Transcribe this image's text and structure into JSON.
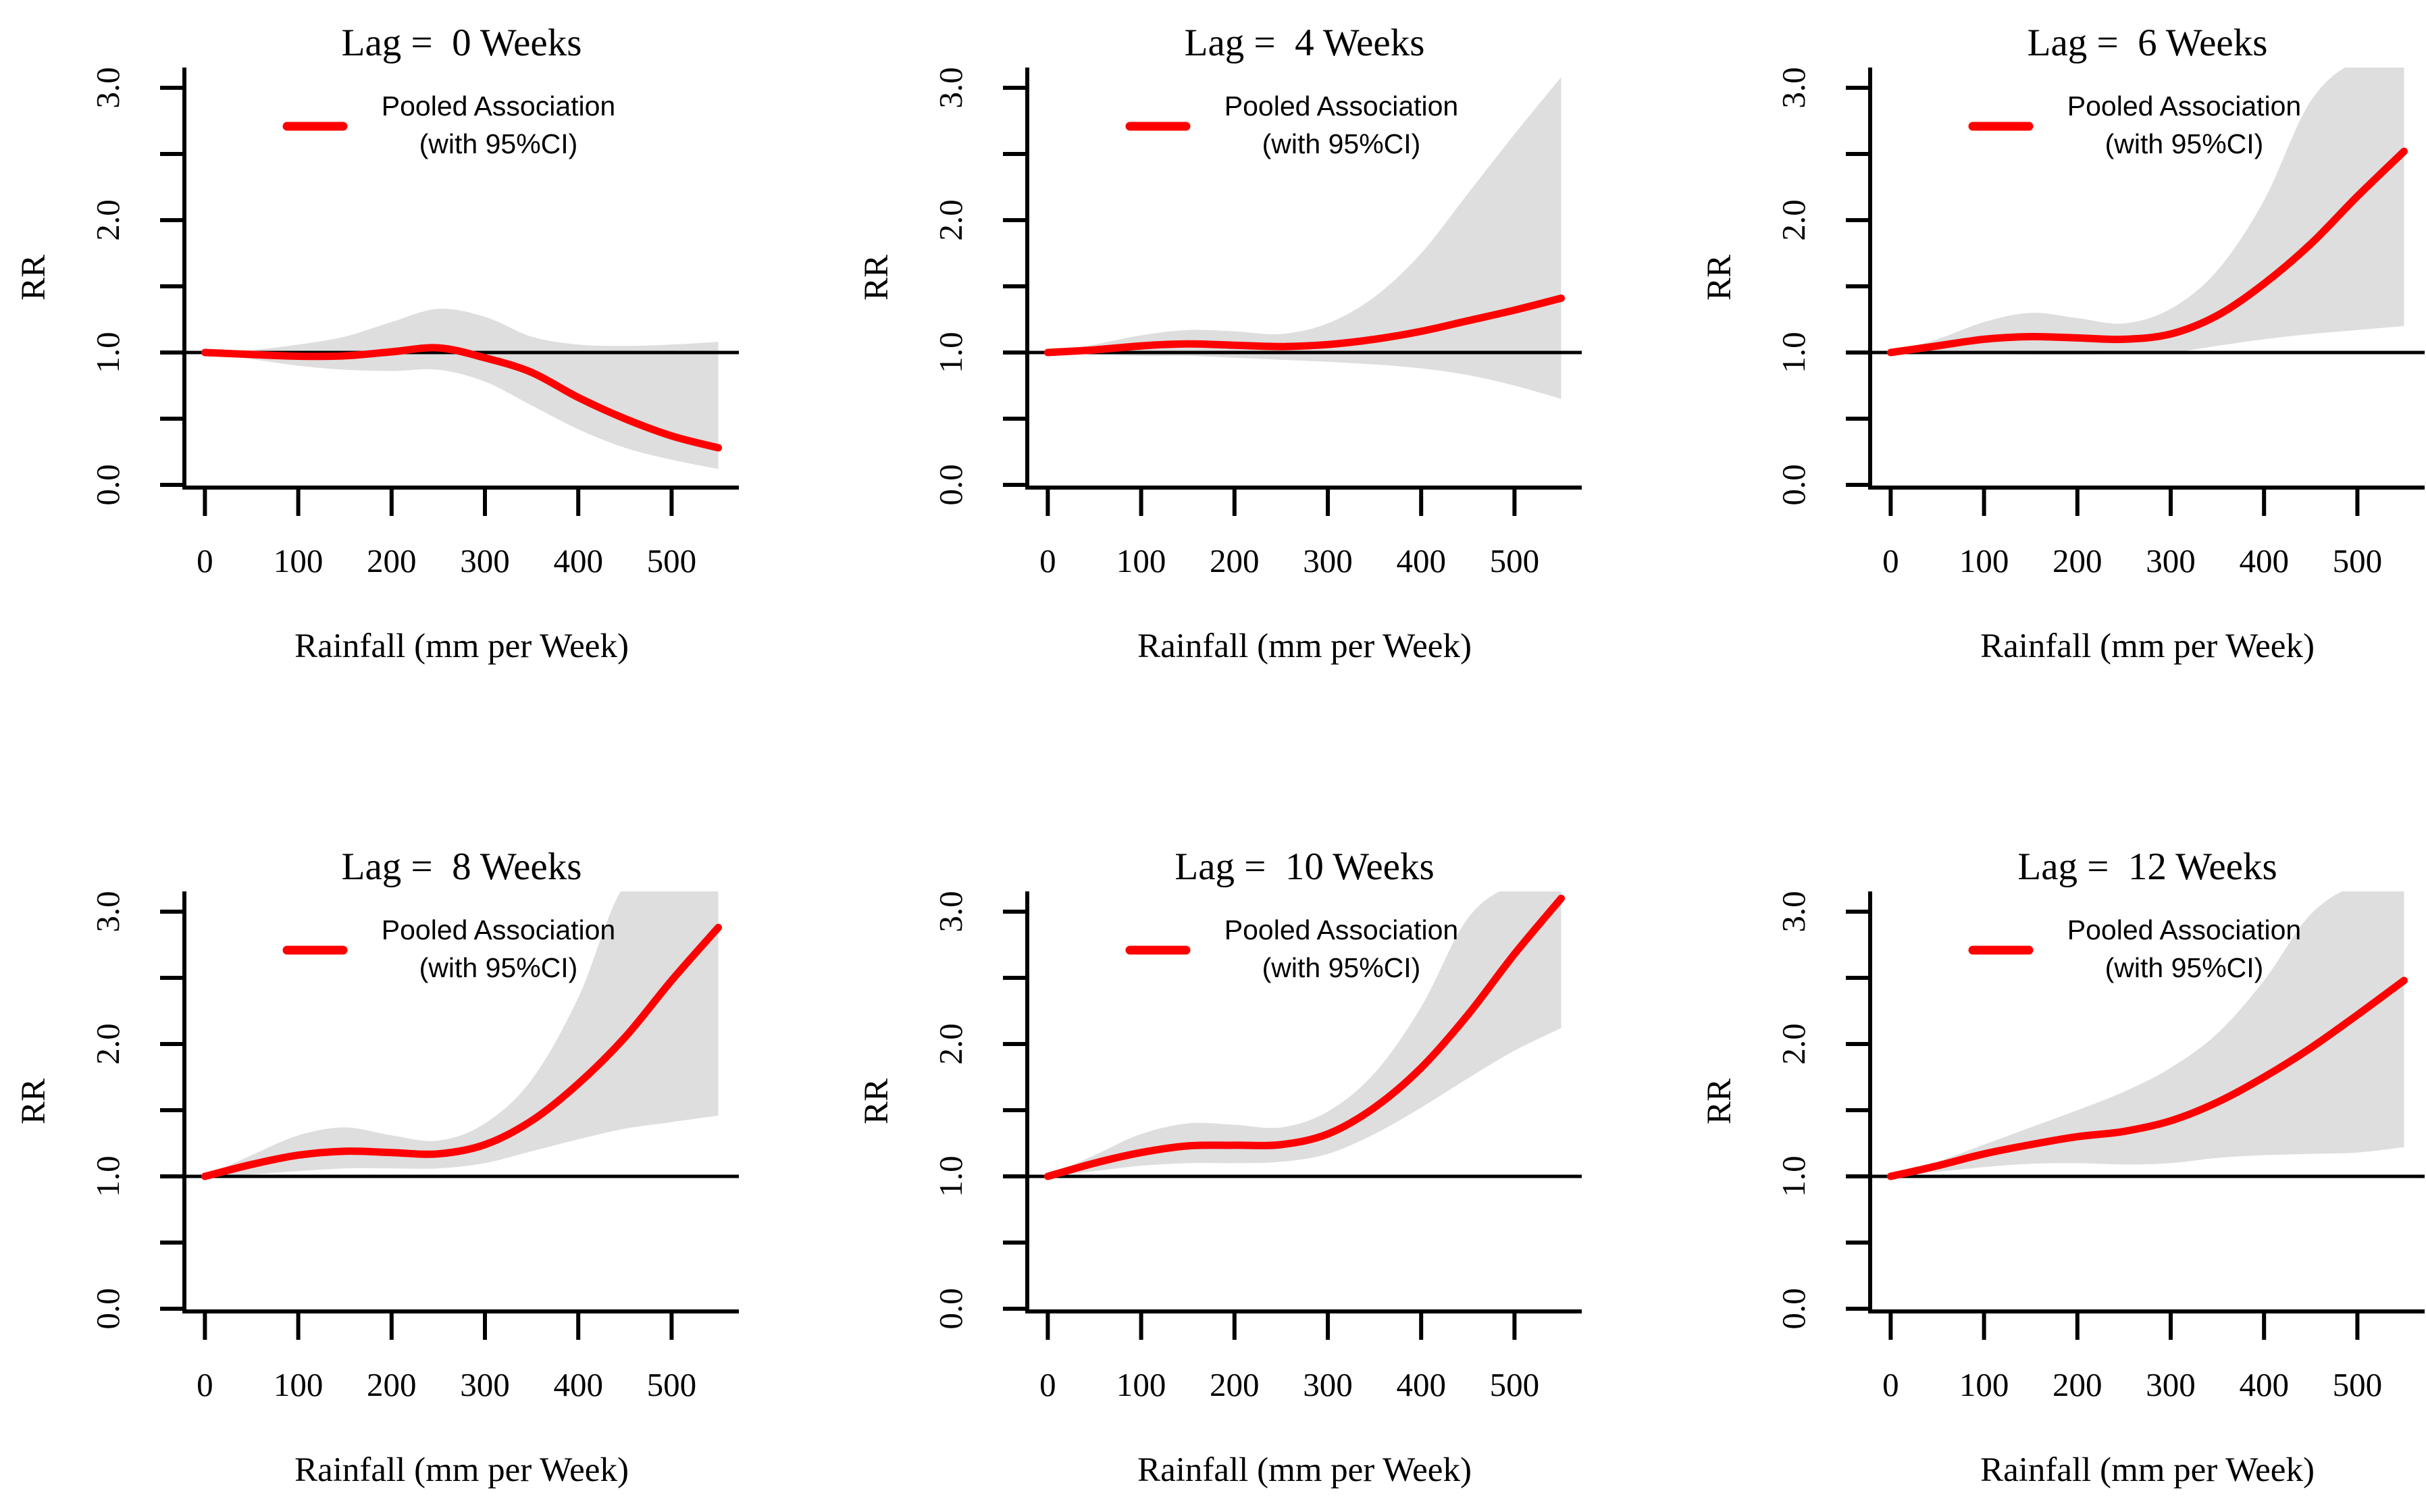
{
  "figure": {
    "background_color": "#ffffff",
    "xlabel": "Rainfall (mm per Week)",
    "ylabel": "RR",
    "x_tick_labels": [
      "0",
      "100",
      "200",
      "300",
      "400",
      "500"
    ],
    "x_tick_values": [
      0,
      100,
      200,
      300,
      400,
      500
    ],
    "y_tick_labels": [
      "0.0",
      "1.0",
      "2.0",
      "3.0"
    ],
    "y_tick_values": [
      0,
      1,
      2,
      3
    ],
    "y_minor_tick_values": [
      0.5,
      1.5,
      2.5
    ],
    "reference_line_y": 1.0,
    "legend": {
      "line1": "Pooled Association",
      "line2": "(with 95%CI)",
      "line_color": "#ff0000"
    },
    "colors": {
      "curve": "#ff0000",
      "ci_band": "#dedede",
      "axis": "#000000",
      "reference_line": "#000000"
    }
  },
  "chart_data": [
    {
      "type": "line",
      "title": "Lag =  0 Weeks",
      "xlabel": "Rainfall (mm per Week)",
      "ylabel": "RR",
      "xlim": [
        0,
        550
      ],
      "ylim": [
        0,
        3
      ],
      "legend_position": "top-center",
      "x": [
        0,
        50,
        100,
        150,
        200,
        250,
        300,
        350,
        400,
        450,
        500,
        550
      ],
      "series": [
        {
          "name": "Pooled Association",
          "values": [
            1.0,
            0.985,
            0.972,
            0.975,
            1.005,
            1.035,
            0.96,
            0.85,
            0.66,
            0.5,
            0.37,
            0.28
          ]
        },
        {
          "name": "95%CI upper",
          "values": [
            1.0,
            1.02,
            1.06,
            1.12,
            1.23,
            1.33,
            1.27,
            1.12,
            1.06,
            1.05,
            1.06,
            1.08
          ]
        },
        {
          "name": "95%CI lower",
          "values": [
            1.0,
            0.95,
            0.9,
            0.87,
            0.86,
            0.87,
            0.78,
            0.6,
            0.42,
            0.28,
            0.19,
            0.12
          ]
        }
      ]
    },
    {
      "type": "line",
      "title": "Lag =  4 Weeks",
      "xlabel": "Rainfall (mm per Week)",
      "ylabel": "RR",
      "xlim": [
        0,
        550
      ],
      "ylim": [
        0,
        3
      ],
      "legend_position": "top-center",
      "x": [
        0,
        50,
        100,
        150,
        200,
        250,
        300,
        350,
        400,
        450,
        500,
        550
      ],
      "series": [
        {
          "name": "Pooled Association",
          "values": [
            1.0,
            1.02,
            1.05,
            1.065,
            1.055,
            1.045,
            1.06,
            1.1,
            1.16,
            1.24,
            1.32,
            1.41
          ]
        },
        {
          "name": "95%CI upper",
          "values": [
            1.0,
            1.06,
            1.13,
            1.17,
            1.16,
            1.14,
            1.22,
            1.42,
            1.75,
            2.2,
            2.65,
            3.08
          ]
        },
        {
          "name": "95%CI lower",
          "values": [
            1.0,
            0.985,
            0.975,
            0.975,
            0.96,
            0.945,
            0.93,
            0.91,
            0.88,
            0.83,
            0.75,
            0.65
          ]
        }
      ]
    },
    {
      "type": "line",
      "title": "Lag =  6 Weeks",
      "xlabel": "Rainfall (mm per Week)",
      "ylabel": "RR",
      "xlim": [
        0,
        550
      ],
      "ylim": [
        0,
        3
      ],
      "legend_position": "top-center",
      "x": [
        0,
        50,
        100,
        150,
        200,
        250,
        300,
        350,
        400,
        450,
        500,
        550
      ],
      "series": [
        {
          "name": "Pooled Association",
          "values": [
            1.0,
            1.05,
            1.1,
            1.12,
            1.11,
            1.1,
            1.14,
            1.28,
            1.52,
            1.82,
            2.18,
            2.52
          ]
        },
        {
          "name": "95%CI upper",
          "values": [
            1.0,
            1.1,
            1.23,
            1.3,
            1.26,
            1.22,
            1.33,
            1.62,
            2.15,
            2.9,
            3.2,
            3.2
          ]
        },
        {
          "name": "95%CI lower",
          "values": [
            1.0,
            0.995,
            0.99,
            0.985,
            0.985,
            0.99,
            1.0,
            1.05,
            1.1,
            1.14,
            1.17,
            1.2
          ]
        }
      ]
    },
    {
      "type": "line",
      "title": "Lag =  8 Weeks",
      "xlabel": "Rainfall (mm per Week)",
      "ylabel": "RR",
      "xlim": [
        0,
        550
      ],
      "ylim": [
        0,
        3
      ],
      "legend_position": "top-center",
      "x": [
        0,
        50,
        100,
        150,
        200,
        250,
        300,
        350,
        400,
        450,
        500,
        550
      ],
      "series": [
        {
          "name": "Pooled Association",
          "values": [
            1.0,
            1.09,
            1.16,
            1.19,
            1.18,
            1.17,
            1.24,
            1.42,
            1.7,
            2.05,
            2.48,
            2.88
          ]
        },
        {
          "name": "95%CI upper",
          "values": [
            1.0,
            1.16,
            1.31,
            1.37,
            1.31,
            1.27,
            1.4,
            1.73,
            2.35,
            3.2,
            3.2,
            3.2
          ]
        },
        {
          "name": "95%CI lower",
          "values": [
            1.0,
            1.015,
            1.04,
            1.06,
            1.06,
            1.06,
            1.1,
            1.19,
            1.28,
            1.36,
            1.41,
            1.46
          ]
        }
      ]
    },
    {
      "type": "line",
      "title": "Lag =  10 Weeks",
      "xlabel": "Rainfall (mm per Week)",
      "ylabel": "RR",
      "xlim": [
        0,
        550
      ],
      "ylim": [
        0,
        3
      ],
      "legend_position": "top-center",
      "x": [
        0,
        50,
        100,
        150,
        200,
        250,
        300,
        350,
        400,
        450,
        500,
        550
      ],
      "series": [
        {
          "name": "Pooled Association",
          "values": [
            1.0,
            1.1,
            1.18,
            1.23,
            1.235,
            1.24,
            1.32,
            1.52,
            1.82,
            2.22,
            2.68,
            3.1
          ]
        },
        {
          "name": "95%CI upper",
          "values": [
            1.0,
            1.16,
            1.32,
            1.4,
            1.39,
            1.37,
            1.49,
            1.78,
            2.28,
            2.95,
            3.2,
            3.2
          ]
        },
        {
          "name": "95%CI lower",
          "values": [
            1.0,
            1.04,
            1.08,
            1.1,
            1.1,
            1.11,
            1.17,
            1.32,
            1.52,
            1.74,
            1.95,
            2.12
          ]
        }
      ]
    },
    {
      "type": "line",
      "title": "Lag =  12 Weeks",
      "xlabel": "Rainfall (mm per Week)",
      "ylabel": "RR",
      "xlim": [
        0,
        550
      ],
      "ylim": [
        0,
        3
      ],
      "legend_position": "top-center",
      "x": [
        0,
        50,
        100,
        150,
        200,
        250,
        300,
        350,
        400,
        450,
        500,
        550
      ],
      "series": [
        {
          "name": "Pooled Association",
          "values": [
            1.0,
            1.08,
            1.17,
            1.24,
            1.3,
            1.34,
            1.42,
            1.56,
            1.75,
            1.97,
            2.22,
            2.48
          ]
        },
        {
          "name": "95%CI upper",
          "values": [
            1.0,
            1.11,
            1.24,
            1.37,
            1.5,
            1.64,
            1.82,
            2.08,
            2.48,
            2.98,
            3.2,
            3.2
          ]
        },
        {
          "name": "95%CI lower",
          "values": [
            1.0,
            1.035,
            1.07,
            1.095,
            1.1,
            1.09,
            1.1,
            1.14,
            1.16,
            1.17,
            1.18,
            1.22
          ]
        }
      ]
    }
  ]
}
